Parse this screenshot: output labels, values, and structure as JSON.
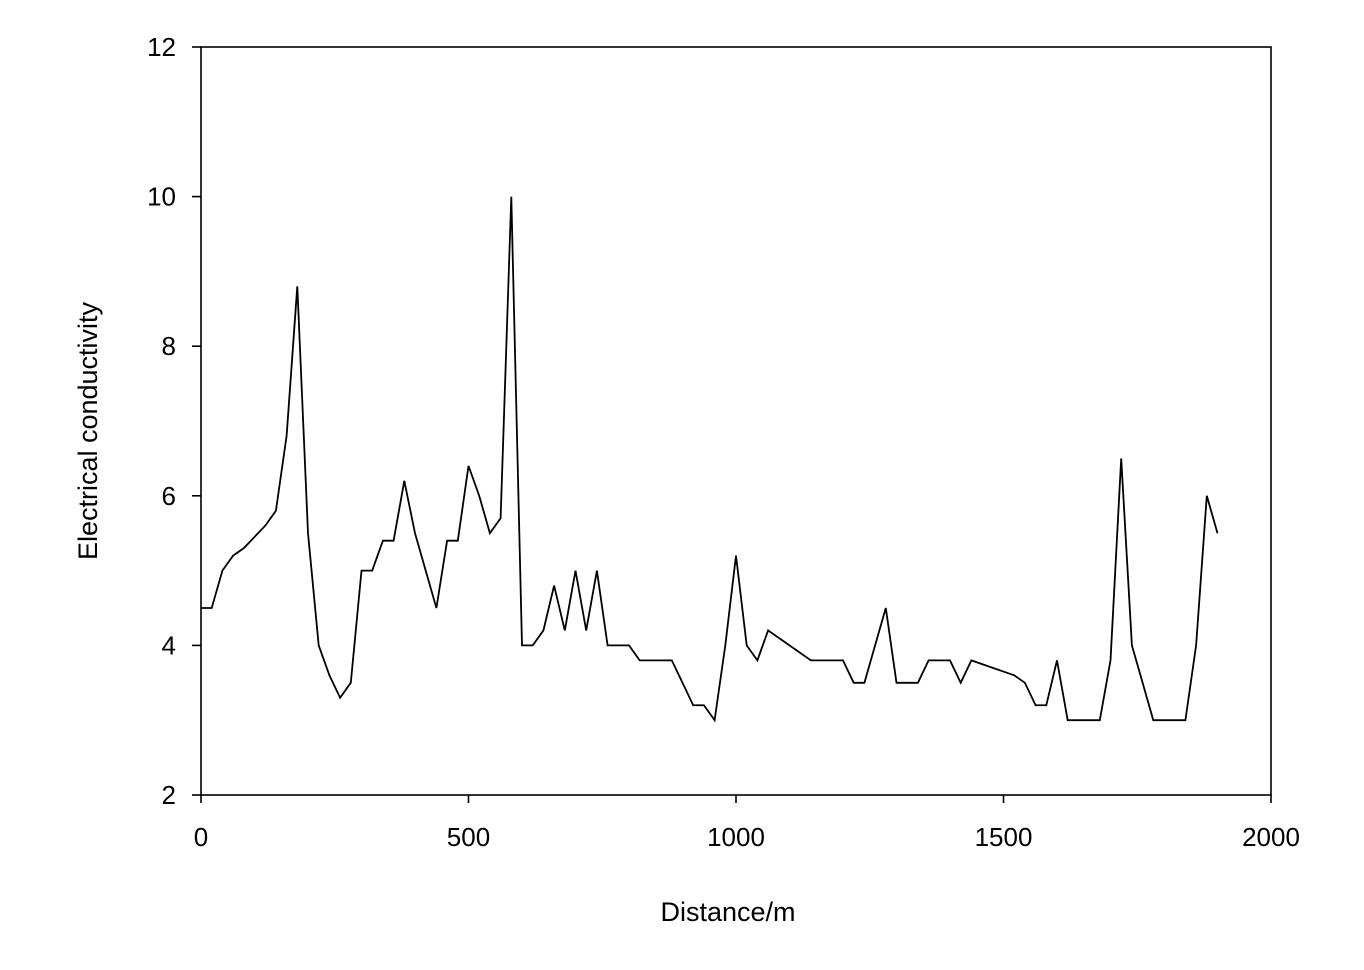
{
  "chart_data": {
    "type": "line",
    "title": "",
    "xlabel": "Distance/m",
    "ylabel": "Electrical conductivity",
    "xlim": [
      0,
      2000
    ],
    "ylim": [
      2,
      12
    ],
    "xticks": [
      0,
      500,
      1000,
      1500,
      2000
    ],
    "yticks": [
      2,
      4,
      6,
      8,
      10,
      12
    ],
    "xtick_labels": [
      "0",
      "500",
      "1000",
      "1500",
      "2000"
    ],
    "ytick_labels": [
      "2",
      "4",
      "6",
      "8",
      "10",
      "12"
    ],
    "grid": false,
    "line_color": "#000000",
    "series": [
      {
        "x": [
          0,
          20,
          40,
          60,
          80,
          100,
          120,
          140,
          160,
          180,
          200,
          220,
          240,
          260,
          280,
          300,
          320,
          340,
          360,
          380,
          400,
          420,
          440,
          460,
          480,
          500,
          520,
          540,
          560,
          580,
          600,
          620,
          640,
          660,
          680,
          700,
          720,
          740,
          760,
          780,
          800,
          820,
          840,
          860,
          880,
          900,
          920,
          940,
          960,
          980,
          1000,
          1020,
          1040,
          1060,
          1080,
          1100,
          1120,
          1140,
          1160,
          1180,
          1200,
          1220,
          1240,
          1260,
          1280,
          1300,
          1320,
          1340,
          1360,
          1380,
          1400,
          1420,
          1440,
          1460,
          1480,
          1500,
          1520,
          1540,
          1560,
          1580,
          1600,
          1620,
          1640,
          1660,
          1680,
          1700,
          1720,
          1740,
          1760,
          1780,
          1800,
          1820,
          1840,
          1860,
          1880,
          1900
        ],
        "y": [
          4.5,
          4.5,
          5.0,
          5.2,
          5.3,
          5.45,
          5.6,
          5.8,
          6.8,
          8.8,
          5.5,
          4.0,
          3.6,
          3.3,
          3.5,
          5.0,
          5.0,
          5.4,
          5.4,
          6.2,
          5.5,
          5.0,
          4.5,
          5.4,
          5.4,
          6.4,
          6.0,
          5.5,
          5.7,
          10.0,
          4.0,
          4.0,
          4.2,
          4.8,
          4.2,
          5.0,
          4.2,
          5.0,
          4.0,
          4.0,
          4.0,
          3.8,
          3.8,
          3.8,
          3.8,
          3.5,
          3.2,
          3.2,
          3.0,
          4.0,
          5.2,
          4.0,
          3.8,
          4.2,
          4.1,
          4.0,
          3.9,
          3.8,
          3.8,
          3.8,
          3.8,
          3.5,
          3.5,
          4.0,
          4.5,
          3.5,
          3.5,
          3.5,
          3.8,
          3.8,
          3.8,
          3.5,
          3.8,
          3.75,
          3.7,
          3.65,
          3.6,
          3.5,
          3.2,
          3.2,
          3.8,
          3.0,
          3.0,
          3.0,
          3.0,
          3.8,
          6.5,
          4.0,
          3.5,
          3.0,
          3.0,
          3.0,
          3.0,
          4.0,
          6.0,
          5.5
        ]
      }
    ]
  }
}
